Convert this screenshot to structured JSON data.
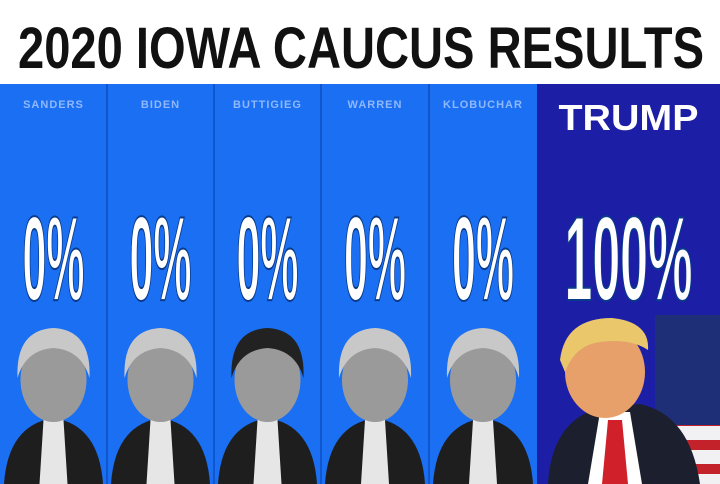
{
  "title": "2020 IOWA CAUCUS RESULTS",
  "candidates": [
    {
      "name": "SANDERS",
      "result": "0%"
    },
    {
      "name": "BIDEN",
      "result": "0%"
    },
    {
      "name": "BUTTIGIEG",
      "result": "0%"
    },
    {
      "name": "WARREN",
      "result": "0%"
    },
    {
      "name": "KLOBUCHAR",
      "result": "0%"
    },
    {
      "name": "TRUMP",
      "result": "100%"
    }
  ]
}
